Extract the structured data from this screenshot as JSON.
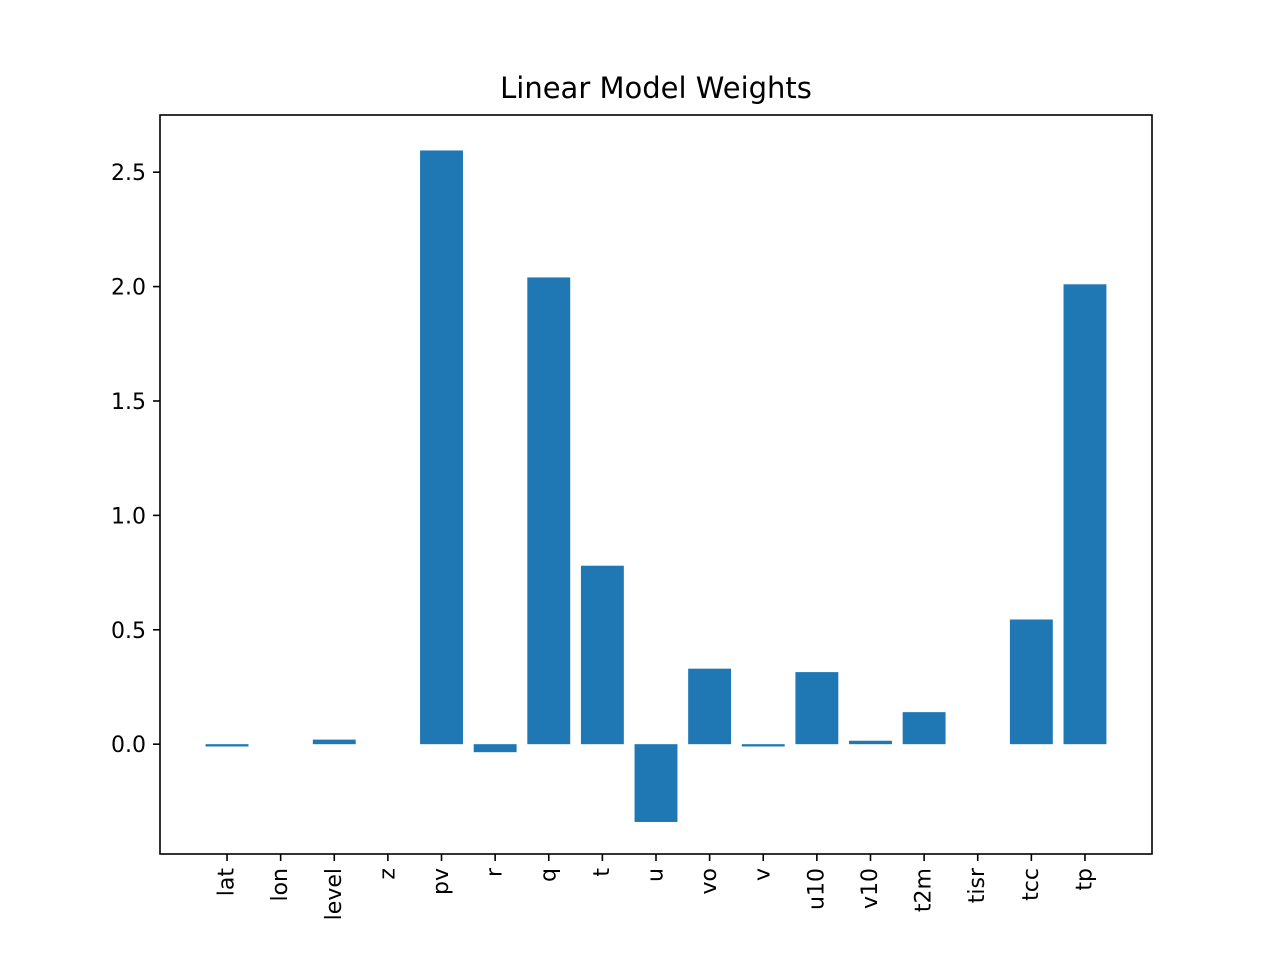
{
  "chart_data": {
    "type": "bar",
    "title": "Linear Model Weights",
    "xlabel": "",
    "ylabel": "",
    "categories": [
      "lat",
      "lon",
      "level",
      "z",
      "pv",
      "r",
      "q",
      "t",
      "u",
      "vo",
      "v",
      "u10",
      "v10",
      "t2m",
      "tisr",
      "tcc",
      "tp"
    ],
    "values": [
      -0.01,
      0.0,
      0.02,
      0.0,
      2.595,
      -0.035,
      2.04,
      0.78,
      -0.34,
      0.33,
      -0.01,
      0.315,
      0.015,
      0.14,
      0.0,
      0.545,
      2.01
    ],
    "ylim": [
      -0.48,
      2.75
    ],
    "yticks": [
      0.0,
      0.5,
      1.0,
      1.5,
      2.0,
      2.5
    ],
    "ytick_labels": [
      "0.0",
      "0.5",
      "1.0",
      "1.5",
      "2.0",
      "2.5"
    ],
    "bar_color": "#1f77b4",
    "grid": false,
    "legend": "none"
  }
}
